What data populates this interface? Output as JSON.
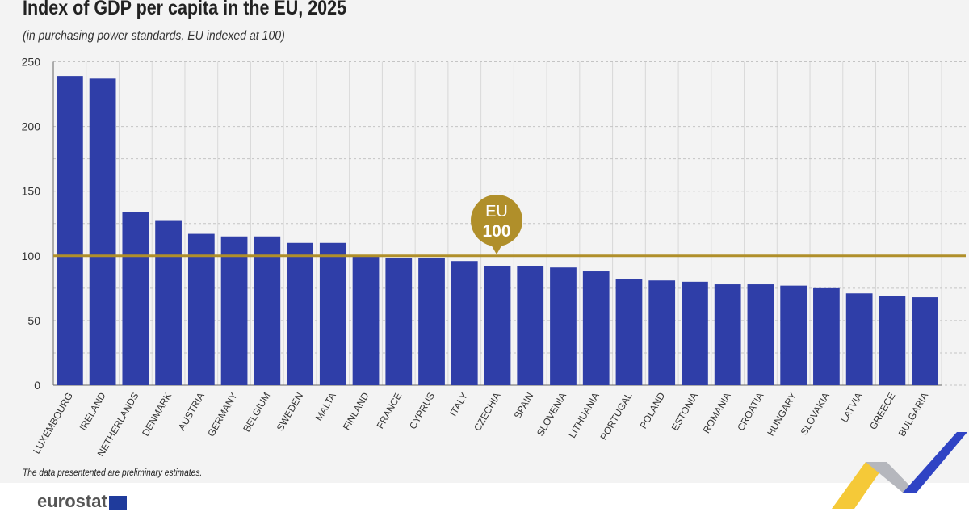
{
  "chart_data": {
    "type": "bar",
    "title": "Index of GDP per capita in the EU, 2025",
    "subtitle": "(in purchasing power standards, EU indexed at 100)",
    "categories": [
      "LUXEMBOURG",
      "IRELAND",
      "NETHERLANDS",
      "DENMARK",
      "AUSTRIA",
      "GERMANY",
      "BELGIUM",
      "SWEDEN",
      "MALTA",
      "FINLAND",
      "FRANCE",
      "CYPRUS",
      "ITALY",
      "CZECHIA",
      "SPAIN",
      "SLOVENIA",
      "LITHUANIA",
      "PORTUGAL",
      "POLAND",
      "ESTONIA",
      "ROMANIA",
      "CROATIA",
      "HUNGARY",
      "SLOVAKIA",
      "LATVIA",
      "GREECE",
      "BULGARIA"
    ],
    "values": [
      239,
      237,
      134,
      127,
      117,
      115,
      115,
      110,
      110,
      100,
      98,
      98,
      96,
      92,
      92,
      91,
      88,
      82,
      81,
      80,
      78,
      78,
      77,
      75,
      71,
      69,
      68
    ],
    "ylim": [
      0,
      250
    ],
    "yticks": [
      "0",
      "50",
      "100",
      "150",
      "200",
      "250"
    ],
    "xlabel": "",
    "ylabel": "",
    "grid": true,
    "reference_line": {
      "value": 100,
      "label_top": "EU",
      "label_bottom": "100"
    },
    "colors": {
      "bar": "#2f3ea8",
      "reference": "#b08f2a"
    }
  },
  "note": "The data presentented are preliminary estimates.",
  "logo": "eurostat"
}
